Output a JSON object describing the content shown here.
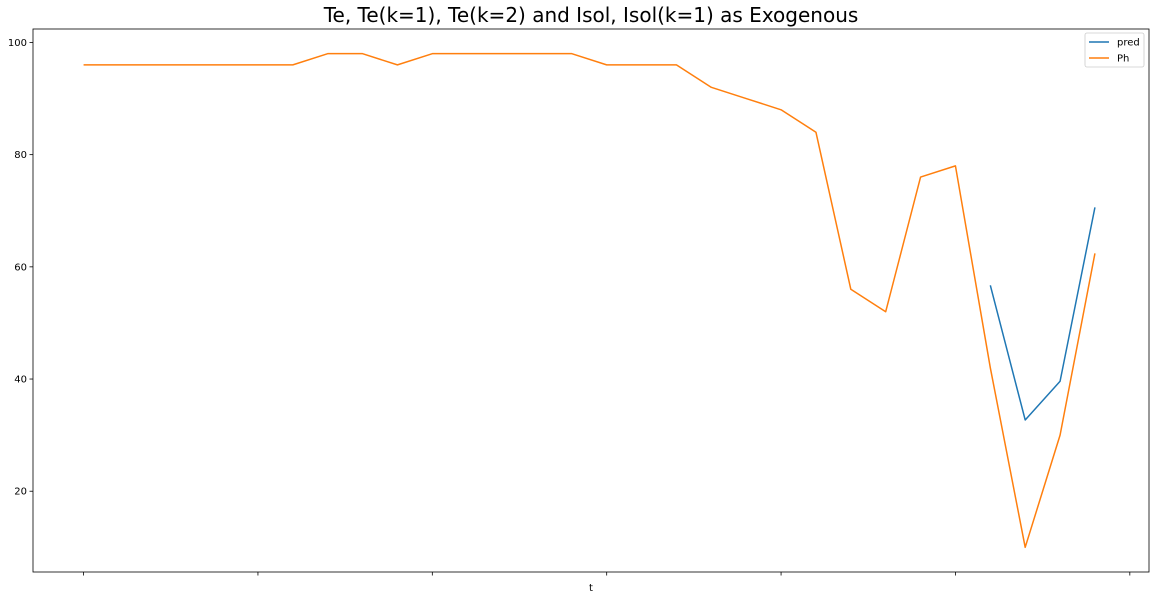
{
  "chart_data": {
    "type": "line",
    "title": "Te, Te(k=1), Te(k=2) and Isol, Isol(k=1) as Exogenous",
    "xlabel": "t",
    "ylabel": "",
    "x": [
      0,
      1,
      2,
      3,
      4,
      5,
      6,
      7,
      8,
      9,
      10,
      11,
      12,
      13,
      14,
      15,
      16,
      17,
      18,
      19,
      20,
      21,
      22,
      23,
      24,
      25,
      26,
      27,
      28,
      29
    ],
    "xlim": [
      -1.45,
      30.55
    ],
    "ylim": [
      5.6,
      102.4
    ],
    "yticks": [
      20,
      40,
      60,
      80,
      100
    ],
    "xticks": [
      0,
      5,
      10,
      15,
      20,
      25,
      30
    ],
    "grid": false,
    "legend_position": "top-right",
    "series": [
      {
        "name": "pred",
        "color": "#1f77b4",
        "values": [
          null,
          null,
          null,
          null,
          null,
          null,
          null,
          null,
          null,
          null,
          null,
          null,
          null,
          null,
          null,
          null,
          null,
          null,
          null,
          null,
          null,
          null,
          null,
          null,
          null,
          null,
          56.7,
          32.7,
          39.6,
          70.6
        ]
      },
      {
        "name": "Ph",
        "color": "#ff7f0e",
        "values": [
          96,
          96,
          96,
          96,
          96,
          96,
          96,
          98,
          98,
          96,
          98,
          98,
          98,
          98,
          98,
          96,
          96,
          96,
          92,
          90,
          88,
          84,
          56,
          52,
          76,
          78,
          42,
          10,
          30,
          62.4
        ]
      }
    ]
  }
}
